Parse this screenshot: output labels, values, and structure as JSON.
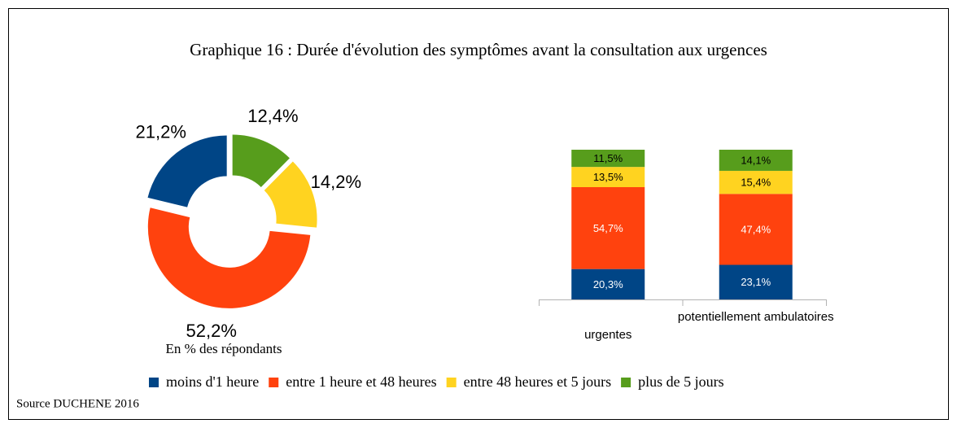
{
  "title": "Graphique 16 : Durée d'évolution des symptômes avant la consultation aux urgences",
  "source": "Source DUCHENE 2016",
  "chart_data": [
    {
      "type": "donut",
      "values": [
        21.2,
        52.2,
        14.2,
        12.4
      ],
      "value_labels": [
        "21,2%",
        "52,2%",
        "14,2%",
        "12,4%"
      ],
      "colors": [
        "#004586",
        "#ff420e",
        "#ffd320",
        "#579d1c"
      ],
      "note": "En % des répondants"
    },
    {
      "type": "stacked_bar",
      "categories": [
        "urgentes",
        "potentiellement ambulatoires"
      ],
      "ylim": [
        0,
        100
      ],
      "series": [
        {
          "name": "moins d'1 heure",
          "color": "#004586",
          "values": [
            20.3,
            23.1
          ],
          "value_labels": [
            "20,3%",
            "23,1%"
          ]
        },
        {
          "name": "entre 1 heure et 48 heures",
          "color": "#ff420e",
          "values": [
            54.7,
            47.4
          ],
          "value_labels": [
            "54,7%",
            "47,4%"
          ]
        },
        {
          "name": "entre 48 heures et 5 jours",
          "color": "#ffd320",
          "values": [
            13.5,
            15.4
          ],
          "value_labels": [
            "13,5%",
            "15,4%"
          ]
        },
        {
          "name": "plus de 5 jours",
          "color": "#579d1c",
          "values": [
            11.5,
            14.1
          ],
          "value_labels": [
            "11,5%",
            "14,1%"
          ]
        }
      ]
    }
  ]
}
